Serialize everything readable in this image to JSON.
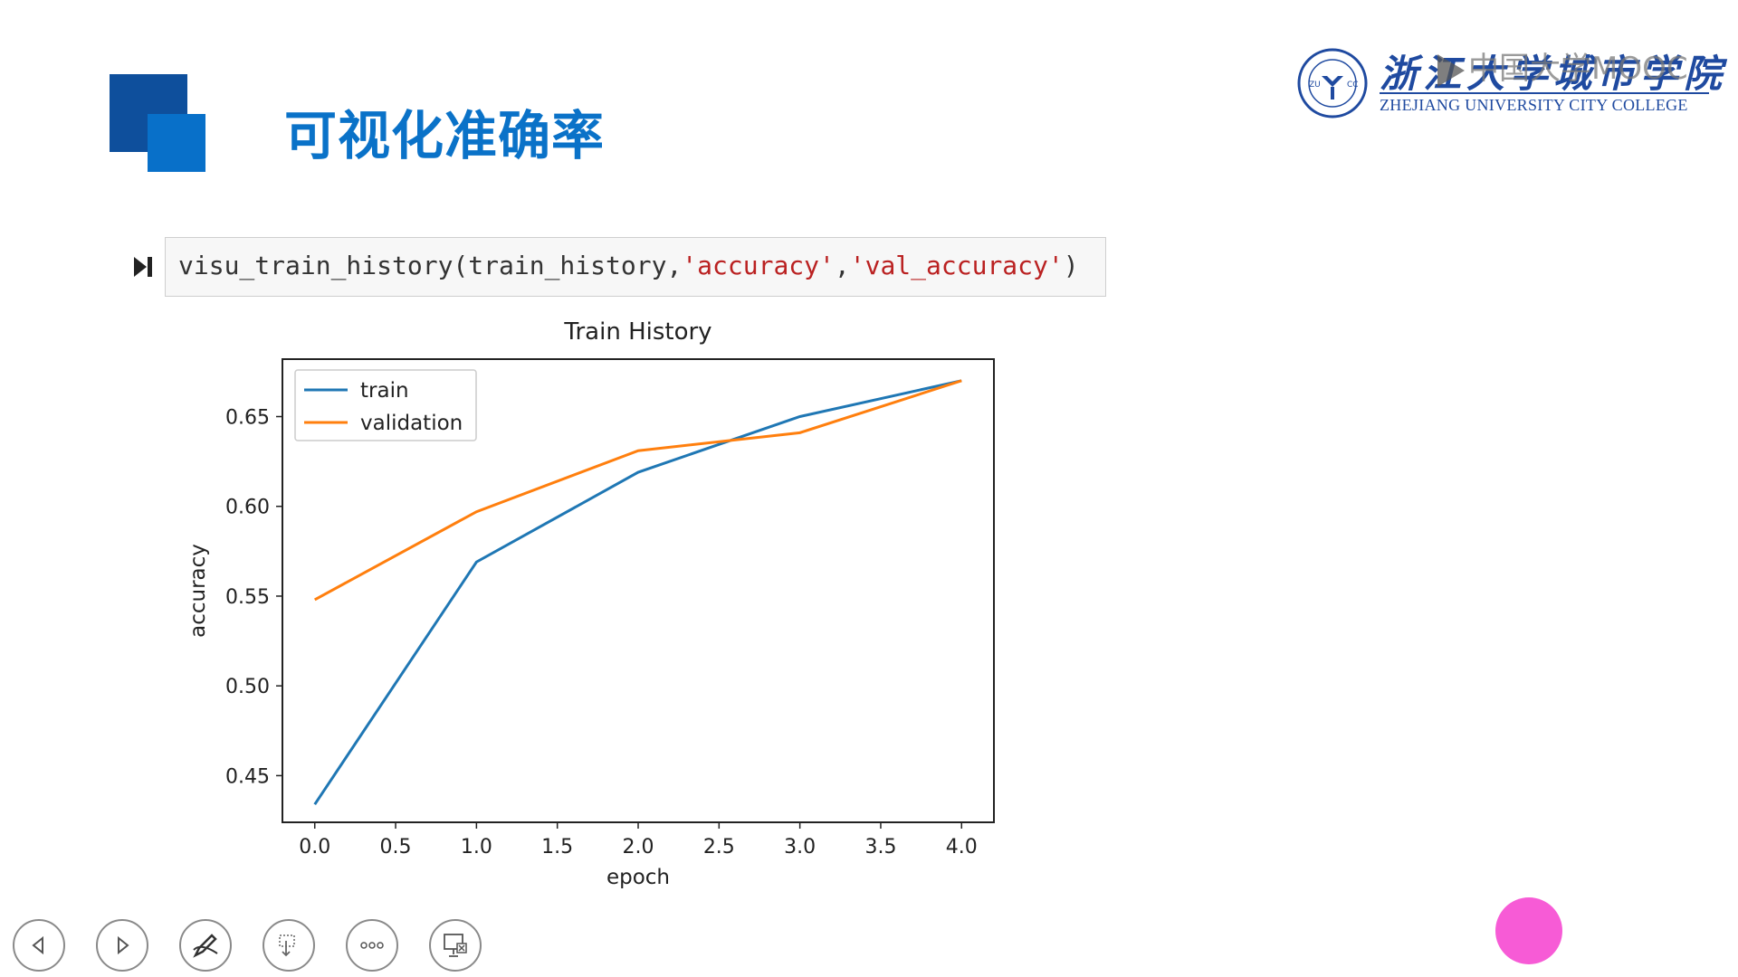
{
  "slide": {
    "title": "可视化准确率"
  },
  "logo": {
    "chinese_name": "浙江大学城市学院",
    "english_name": "ZHEJIANG UNIVERSITY CITY COLLEGE",
    "seal_text_left": "ZU",
    "seal_text_right": "CC"
  },
  "watermark": {
    "text": "中国大学MOOC"
  },
  "code_cell": {
    "code_prefix": "visu_train_history(train_history,",
    "arg1": "'accuracy'",
    "separator": ",",
    "arg2": "'val_accuracy'",
    "code_suffix": ")"
  },
  "colors": {
    "title_blue": "#0a72c8",
    "train_line": "#1f77b4",
    "validation_line": "#ff7f0e",
    "pink_dot": "#f75bd6"
  },
  "chart_data": {
    "type": "line",
    "title": "Train History",
    "xlabel": "epoch",
    "ylabel": "accuracy",
    "x": [
      0,
      1,
      2,
      3,
      4
    ],
    "series": [
      {
        "name": "train",
        "values": [
          0.434,
          0.569,
          0.619,
          0.65,
          0.67
        ]
      },
      {
        "name": "validation",
        "values": [
          0.548,
          0.597,
          0.631,
          0.641,
          0.67
        ]
      }
    ],
    "xlim": [
      -0.2,
      4.2
    ],
    "ylim": [
      0.424,
      0.682
    ],
    "xticks": [
      "0.0",
      "0.5",
      "1.0",
      "1.5",
      "2.0",
      "2.5",
      "3.0",
      "3.5",
      "4.0"
    ],
    "xtick_values": [
      0,
      0.5,
      1,
      1.5,
      2,
      2.5,
      3,
      3.5,
      4
    ],
    "yticks": [
      "0.45",
      "0.50",
      "0.55",
      "0.60",
      "0.65"
    ],
    "ytick_values": [
      0.45,
      0.5,
      0.55,
      0.6,
      0.65
    ],
    "grid": false,
    "legend_position": "upper left"
  },
  "toolbar": {
    "items": [
      {
        "name": "previous-button",
        "icon": "triangle-left-icon"
      },
      {
        "name": "next-button",
        "icon": "triangle-right-icon"
      },
      {
        "name": "pen-button",
        "icon": "pen-icon"
      },
      {
        "name": "pointer-button",
        "icon": "pointer-icon"
      },
      {
        "name": "more-button",
        "icon": "more-dots-icon"
      },
      {
        "name": "end-show-button",
        "icon": "screen-close-icon"
      }
    ]
  }
}
